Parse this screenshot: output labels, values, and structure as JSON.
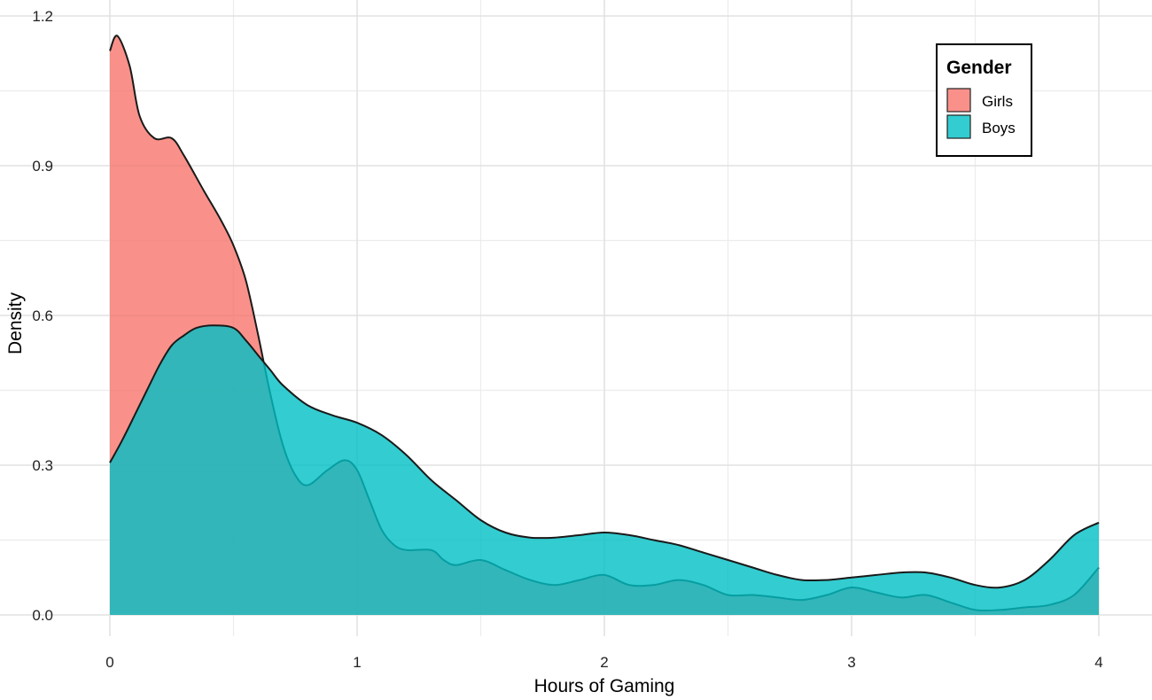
{
  "chart_data": {
    "type": "area",
    "subtype": "density",
    "xlabel": "Hours of Gaming",
    "ylabel": "Density",
    "xlim": [
      0,
      4
    ],
    "ylim": [
      0,
      1.2
    ],
    "x_ticks": [
      0,
      1,
      2,
      3,
      4
    ],
    "x_tick_labels": [
      "0",
      "1",
      "2",
      "3",
      "4"
    ],
    "y_ticks": [
      0,
      0.3,
      0.6,
      0.9,
      1.2
    ],
    "y_tick_labels": [
      "0.0",
      "0.3",
      "0.6",
      "0.9",
      "1.2"
    ],
    "grid": true,
    "legend": {
      "title": "Gender",
      "position": "top-right",
      "entries": [
        {
          "label": "Girls",
          "color": "#F8766D"
        },
        {
          "label": "Boys",
          "color": "#00BFC4"
        }
      ]
    },
    "series": [
      {
        "name": "Girls",
        "color": "#F8766D",
        "x": [
          0,
          0.03,
          0.08,
          0.12,
          0.18,
          0.25,
          0.3,
          0.38,
          0.45,
          0.5,
          0.55,
          0.6,
          0.65,
          0.7,
          0.75,
          0.8,
          0.88,
          0.95,
          1.0,
          1.05,
          1.1,
          1.15,
          1.2,
          1.3,
          1.35,
          1.4,
          1.5,
          1.6,
          1.7,
          1.8,
          1.9,
          2.0,
          2.1,
          2.2,
          2.3,
          2.4,
          2.5,
          2.6,
          2.7,
          2.8,
          2.9,
          3.0,
          3.1,
          3.2,
          3.3,
          3.4,
          3.5,
          3.6,
          3.7,
          3.8,
          3.9,
          4.0
        ],
        "y": [
          1.13,
          1.16,
          1.1,
          1.0,
          0.955,
          0.955,
          0.92,
          0.85,
          0.79,
          0.74,
          0.67,
          0.56,
          0.44,
          0.34,
          0.28,
          0.26,
          0.29,
          0.31,
          0.29,
          0.23,
          0.17,
          0.14,
          0.13,
          0.13,
          0.11,
          0.1,
          0.11,
          0.09,
          0.07,
          0.06,
          0.07,
          0.08,
          0.06,
          0.06,
          0.07,
          0.06,
          0.04,
          0.04,
          0.035,
          0.03,
          0.04,
          0.055,
          0.045,
          0.035,
          0.04,
          0.025,
          0.01,
          0.01,
          0.015,
          0.02,
          0.04,
          0.095
        ]
      },
      {
        "name": "Boys",
        "color": "#00BFC4",
        "x": [
          0,
          0.05,
          0.1,
          0.15,
          0.2,
          0.25,
          0.3,
          0.35,
          0.42,
          0.5,
          0.55,
          0.6,
          0.65,
          0.7,
          0.8,
          0.9,
          1.0,
          1.1,
          1.2,
          1.3,
          1.4,
          1.5,
          1.6,
          1.7,
          1.8,
          1.9,
          2.0,
          2.1,
          2.2,
          2.3,
          2.4,
          2.5,
          2.6,
          2.7,
          2.8,
          2.9,
          3.0,
          3.1,
          3.2,
          3.3,
          3.4,
          3.5,
          3.6,
          3.7,
          3.8,
          3.9,
          4.0
        ],
        "y": [
          0.305,
          0.35,
          0.4,
          0.45,
          0.5,
          0.54,
          0.56,
          0.575,
          0.58,
          0.575,
          0.55,
          0.52,
          0.49,
          0.46,
          0.42,
          0.4,
          0.385,
          0.36,
          0.32,
          0.27,
          0.23,
          0.19,
          0.165,
          0.155,
          0.155,
          0.16,
          0.165,
          0.16,
          0.15,
          0.14,
          0.125,
          0.11,
          0.095,
          0.08,
          0.07,
          0.07,
          0.075,
          0.08,
          0.085,
          0.085,
          0.075,
          0.06,
          0.055,
          0.07,
          0.11,
          0.16,
          0.185
        ]
      }
    ]
  }
}
